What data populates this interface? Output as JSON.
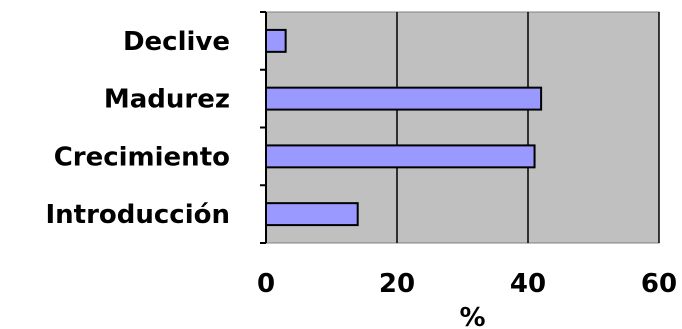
{
  "chart_data": {
    "type": "bar",
    "orientation": "horizontal",
    "categories": [
      "Declive",
      "Madurez",
      "Crecimiento",
      "Introducción"
    ],
    "values": [
      3,
      42,
      41,
      14
    ],
    "xlabel": "%",
    "ylabel": "",
    "xlim": [
      0,
      60
    ],
    "xticks": [
      "0",
      "20",
      "40",
      "60"
    ],
    "grid": true,
    "legend": "none",
    "colors": {
      "plot_background": "#c0c0c0",
      "bar_fill": "#9999ff",
      "bar_stroke": "#000000",
      "grid": "#000000"
    }
  }
}
